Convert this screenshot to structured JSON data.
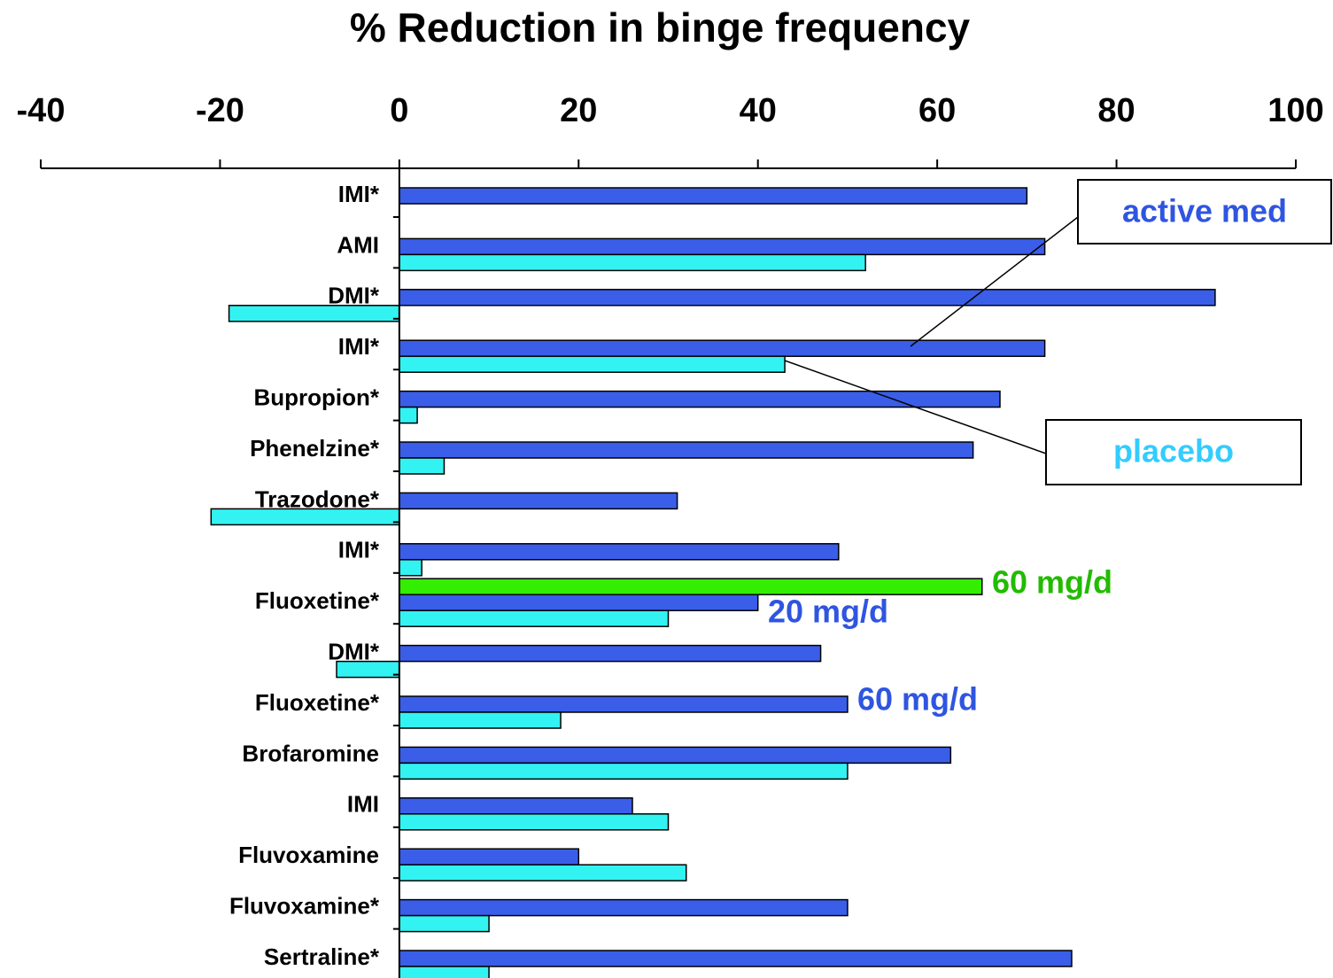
{
  "chart_data": {
    "type": "bar",
    "orientation": "horizontal",
    "title": "% Reduction in binge frequency",
    "categories": [
      "IMI*",
      "AMI",
      "DMI*",
      "IMI*",
      "Bupropion*",
      "Phenelzine*",
      "Trazodone*",
      "IMI*",
      "Fluoxetine*",
      "DMI*",
      "Fluoxetine*",
      "Brofaromine",
      "IMI",
      "Fluvoxamine",
      "Fluvoxamine*",
      "Sertraline*"
    ],
    "series": [
      {
        "name": "active med",
        "color": "#3a5ee8",
        "text_color": "#2f55e0",
        "values": [
          70,
          72,
          91,
          72,
          67,
          64,
          31,
          49,
          40,
          47,
          50,
          61.5,
          26,
          20,
          50,
          75
        ]
      },
      {
        "name": "placebo",
        "color": "#33f2f2",
        "text_color": "#33ccff",
        "values": [
          null,
          52,
          -19,
          43,
          2,
          5,
          -21,
          2.5,
          30,
          -7,
          18,
          50,
          30,
          32,
          10,
          10
        ]
      },
      {
        "name": "60 mg/d",
        "color": "#33ee00",
        "text_color": "#22bb00",
        "values": [
          null,
          null,
          null,
          null,
          null,
          null,
          null,
          null,
          65,
          null,
          null,
          null,
          null,
          null,
          null,
          null
        ]
      }
    ],
    "annotations": [
      "20 mg/d",
      "60 mg/d"
    ],
    "xlim": [
      -40,
      100
    ],
    "xticks": [
      -40,
      -20,
      0,
      20,
      40,
      60,
      80,
      100
    ]
  }
}
